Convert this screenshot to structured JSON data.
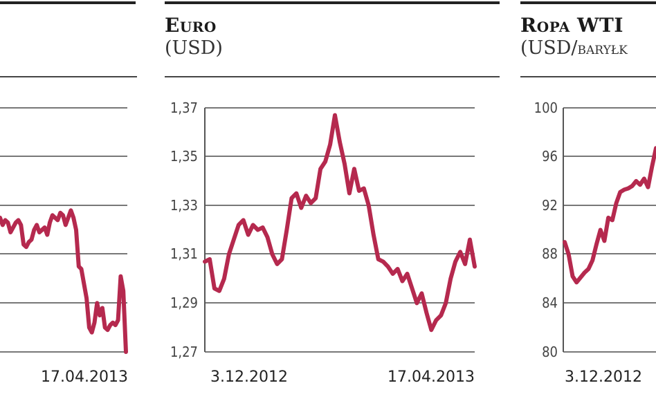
{
  "panels": [
    {
      "id": "left",
      "title": "",
      "subtitle": "",
      "date_end": "17.04.2013"
    },
    {
      "id": "euro",
      "title": "Euro",
      "subtitle": "(USD)",
      "date_start": "3.12.2012",
      "date_end": "17.04.2013"
    },
    {
      "id": "wti",
      "title": "Ropa WTI",
      "subtitle_main": "(USD/",
      "subtitle_unit": "baryłk",
      "date_start": "3.12.2012"
    }
  ],
  "chart_data": [
    {
      "type": "line",
      "title": "",
      "x_start": "",
      "x_end": "17.04.2013",
      "y_visible_fraction": [
        0.55,
        0.52,
        0.54,
        0.53,
        0.49,
        0.51,
        0.53,
        0.54,
        0.52,
        0.44,
        0.43,
        0.45,
        0.46,
        0.5,
        0.52,
        0.49,
        0.5,
        0.51,
        0.48,
        0.53,
        0.56,
        0.55,
        0.54,
        0.57,
        0.56,
        0.52,
        0.55,
        0.58,
        0.55,
        0.5,
        0.35,
        0.34,
        0.28,
        0.22,
        0.1,
        0.08,
        0.12,
        0.2,
        0.15,
        0.18,
        0.1,
        0.09,
        0.11,
        0.12,
        0.11,
        0.13,
        0.31,
        0.25,
        0.0
      ]
    },
    {
      "type": "line",
      "title": "Euro",
      "ylabel": "(USD)",
      "x_start": "3.12.2012",
      "x_end": "17.04.2013",
      "ylim": [
        1.27,
        1.37
      ],
      "yticks": [
        "1,37",
        "1,35",
        "1,33",
        "1,31",
        "1,29",
        "1,27"
      ],
      "values": [
        1.307,
        1.308,
        1.296,
        1.295,
        1.3,
        1.31,
        1.316,
        1.322,
        1.324,
        1.318,
        1.322,
        1.32,
        1.321,
        1.317,
        1.31,
        1.306,
        1.308,
        1.32,
        1.333,
        1.335,
        1.329,
        1.334,
        1.331,
        1.333,
        1.345,
        1.348,
        1.355,
        1.367,
        1.356,
        1.347,
        1.335,
        1.345,
        1.336,
        1.337,
        1.33,
        1.318,
        1.308,
        1.307,
        1.305,
        1.302,
        1.304,
        1.299,
        1.302,
        1.296,
        1.29,
        1.294,
        1.286,
        1.279,
        1.283,
        1.285,
        1.29,
        1.3,
        1.307,
        1.311,
        1.306,
        1.316,
        1.305
      ]
    },
    {
      "type": "line",
      "title": "Ropa WTI",
      "ylabel": "(USD/baryłk",
      "x_start": "3.12.2012",
      "ylim": [
        80,
        100
      ],
      "yticks": [
        "100",
        "96",
        "92",
        "88",
        "84",
        "80"
      ],
      "values": [
        89.0,
        88.0,
        86.2,
        85.7,
        86.1,
        86.5,
        86.8,
        87.5,
        88.8,
        90.0,
        89.1,
        91.0,
        90.8,
        92.2,
        93.1,
        93.3,
        93.4,
        93.6,
        94.0,
        93.7,
        94.2,
        93.5,
        95.2,
        96.7
      ]
    }
  ],
  "colors": {
    "line": "#b5294e",
    "grid": "#777777",
    "axis": "#555555",
    "text": "#222222"
  }
}
